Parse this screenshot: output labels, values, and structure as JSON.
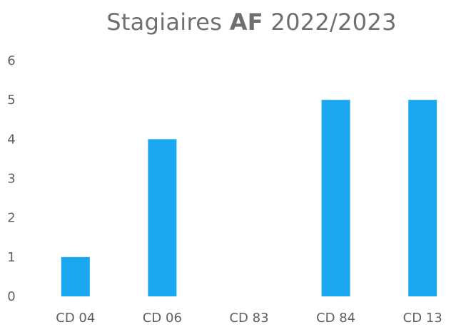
{
  "chart_data": {
    "type": "bar",
    "title": {
      "prefix": "Stagiaires",
      "bold": "AF",
      "suffix": "2022/2023"
    },
    "categories": [
      "CD 04",
      "CD 06",
      "CD 83",
      "CD 84",
      "CD 13"
    ],
    "values": [
      1,
      4,
      0,
      5,
      5
    ],
    "ylim": [
      0,
      6
    ],
    "yticks": [
      0,
      1,
      2,
      3,
      4,
      5,
      6
    ],
    "xlabel": "",
    "ylabel": "",
    "grid": false,
    "legend": "none",
    "bar_color": "#1aa7ef"
  }
}
